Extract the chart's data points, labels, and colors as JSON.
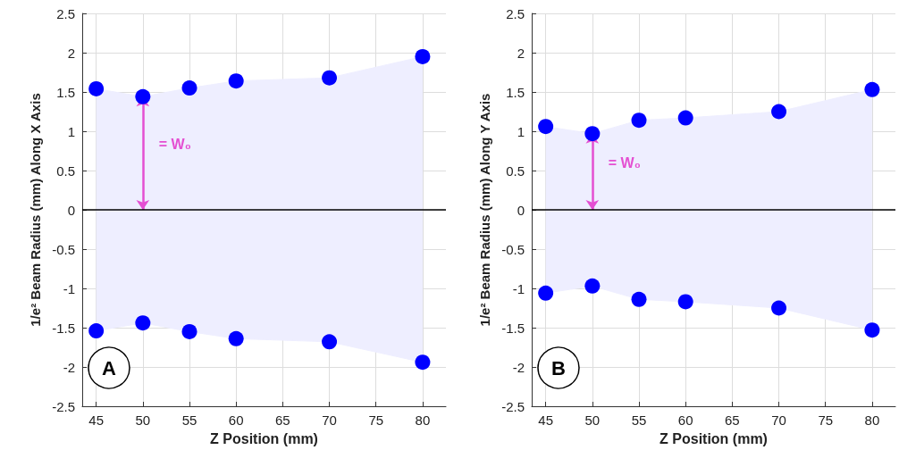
{
  "chart_data": [
    {
      "type": "scatter",
      "xlabel": "Z Position (mm)",
      "ylabel": "1/e² Beam Radius (mm) Along X Axis",
      "x": [
        45,
        50,
        55,
        60,
        70,
        80
      ],
      "xlim": [
        43.5,
        82.5
      ],
      "xticks": [
        45,
        50,
        55,
        60,
        65,
        70,
        75,
        80
      ],
      "ylim": [
        -2.5,
        2.5
      ],
      "yticks": [
        -2.5,
        -2,
        -1.5,
        -1,
        -0.5,
        0,
        0.5,
        1,
        1.5,
        2,
        2.5
      ],
      "grid": true,
      "series": [
        {
          "color": "#0000ff",
          "marker": "circle",
          "values": [
            1.54,
            1.44,
            1.55,
            1.64,
            1.68,
            1.95
          ]
        },
        {
          "color": "#0000ff",
          "marker": "circle",
          "values": [
            -1.54,
            -1.44,
            -1.55,
            -1.64,
            -1.68,
            -1.94
          ]
        },
        {
          "type": "area",
          "color": "#eeeeff",
          "marker": "none",
          "values": [
            1.54,
            1.44,
            1.55,
            1.64,
            1.68,
            1.95
          ]
        },
        {
          "type": "area",
          "color": "#eeeeff",
          "marker": "none",
          "values": [
            -1.54,
            -1.44,
            -1.55,
            -1.64,
            -1.68,
            -1.94
          ]
        }
      ],
      "ref_lines": [
        {
          "axis": "y",
          "value": 0,
          "color": "#000000"
        }
      ],
      "annotations": [
        "= W₀",
        "A"
      ]
    },
    {
      "type": "scatter",
      "xlabel": "Z Position (mm)",
      "ylabel": "1/e² Beam Radius (mm) Along Y Axis",
      "x": [
        45,
        50,
        55,
        60,
        70,
        80
      ],
      "xlim": [
        43.5,
        82.5
      ],
      "xticks": [
        45,
        50,
        55,
        60,
        65,
        70,
        75,
        80
      ],
      "ylim": [
        -2.5,
        2.5
      ],
      "yticks": [
        -2.5,
        -2,
        -1.5,
        -1,
        -0.5,
        0,
        0.5,
        1,
        1.5,
        2,
        2.5
      ],
      "grid": true,
      "series": [
        {
          "color": "#0000ff",
          "marker": "circle",
          "values": [
            1.06,
            0.97,
            1.14,
            1.17,
            1.25,
            1.53
          ]
        },
        {
          "color": "#0000ff",
          "marker": "circle",
          "values": [
            -1.06,
            -0.97,
            -1.14,
            -1.17,
            -1.25,
            -1.53
          ]
        },
        {
          "type": "area",
          "color": "#eeeeff",
          "marker": "none",
          "values": [
            1.06,
            0.97,
            1.14,
            1.17,
            1.25,
            1.53
          ]
        },
        {
          "type": "area",
          "color": "#eeeeff",
          "marker": "none",
          "values": [
            -1.06,
            -0.97,
            -1.14,
            -1.17,
            -1.25,
            -1.53
          ]
        }
      ],
      "ref_lines": [
        {
          "axis": "y",
          "value": 0,
          "color": "#000000"
        }
      ],
      "annotations": [
        "= W₀",
        "B"
      ]
    }
  ]
}
